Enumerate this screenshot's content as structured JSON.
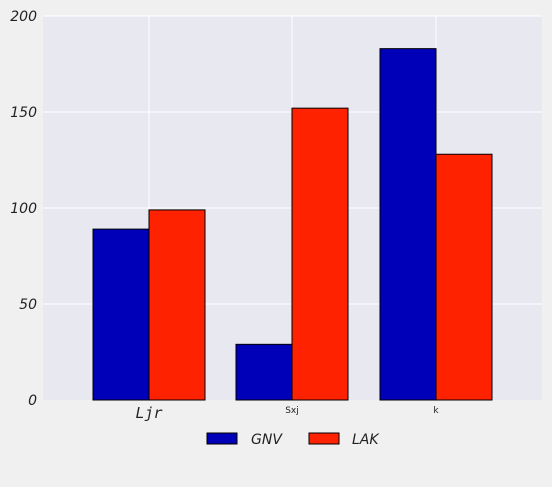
{
  "chart_data": {
    "type": "bar",
    "categories": [
      "Ljr",
      "Sxj",
      "k"
    ],
    "series": [
      {
        "name": "GNV",
        "values": [
          89,
          29,
          183
        ],
        "color": "#0000b8"
      },
      {
        "name": "LAK",
        "values": [
          99,
          152,
          128
        ],
        "color": "#ff2200"
      }
    ],
    "ylim": [
      0,
      200
    ],
    "yticks": [
      0,
      50,
      100,
      150,
      200
    ],
    "grid": true,
    "legend_position": "bottom-center",
    "plot_background": "#e8e8f0",
    "figure_background": "#f0f0f0"
  }
}
